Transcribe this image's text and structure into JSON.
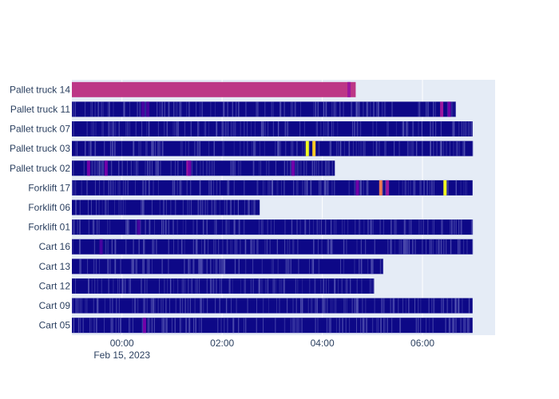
{
  "chart_data": {
    "type": "timeline",
    "x_axis": {
      "range": [
        "2023-02-14 23:00",
        "2023-02-15 07:27"
      ],
      "ticks": [
        {
          "time": "2023-02-15 00:00",
          "label": "00:00"
        },
        {
          "time": "2023-02-15 02:00",
          "label": "02:00"
        },
        {
          "time": "2023-02-15 04:00",
          "label": "04:00"
        },
        {
          "time": "2023-02-15 06:00",
          "label": "06:00"
        }
      ],
      "date_label": "Feb 15, 2023"
    },
    "colors": {
      "plot_bg": "#e5ecf6",
      "gridline": "#ffffff",
      "base": "#0d0887",
      "palette": [
        "#0d0887",
        "#46039f",
        "#7201a8",
        "#9c179e",
        "#bd3786",
        "#d8576b",
        "#ed7953",
        "#fb9f3a",
        "#fdca26",
        "#f0f921"
      ]
    },
    "categories": [
      {
        "name": "Pallet truck 14",
        "start": "2023-02-14 23:00",
        "end": "2023-02-15 04:40",
        "base": "#bd3786",
        "segments": [
          {
            "time": "2023-02-15 04:32",
            "color": "#9c179e"
          }
        ]
      },
      {
        "name": "Pallet truck 11",
        "start": "2023-02-14 23:00",
        "end": "2023-02-15 06:40",
        "base": "#0d0887",
        "segments": [
          {
            "time": "2023-02-15 00:25",
            "color": "#46039f"
          },
          {
            "time": "2023-02-15 00:31",
            "color": "#46039f"
          },
          {
            "time": "2023-02-15 06:23",
            "color": "#9c179e"
          },
          {
            "time": "2023-02-15 06:32",
            "color": "#7201a8"
          }
        ]
      },
      {
        "name": "Pallet truck 07",
        "start": "2023-02-14 23:00",
        "end": "2023-02-15 07:00",
        "base": "#0d0887",
        "segments": []
      },
      {
        "name": "Pallet truck 03",
        "start": "2023-02-14 23:00",
        "end": "2023-02-15 07:00",
        "base": "#0d0887",
        "segments": [
          {
            "time": "2023-02-15 03:42",
            "color": "#f0f921"
          },
          {
            "time": "2023-02-15 03:50",
            "color": "#fdca26"
          }
        ]
      },
      {
        "name": "Pallet truck 02",
        "start": "2023-02-14 23:00",
        "end": "2023-02-15 04:15",
        "base": "#0d0887",
        "segments": [
          {
            "time": "2023-02-14 23:20",
            "color": "#7201a8"
          },
          {
            "time": "2023-02-14 23:41",
            "color": "#7201a8"
          },
          {
            "time": "2023-02-15 01:19",
            "color": "#9c179e"
          },
          {
            "time": "2023-02-15 01:21",
            "color": "#7201a8"
          },
          {
            "time": "2023-02-15 03:25",
            "color": "#7201a8"
          }
        ]
      },
      {
        "name": "Forklift 17",
        "start": "2023-02-14 23:00",
        "end": "2023-02-15 07:00",
        "base": "#0d0887",
        "segments": [
          {
            "time": "2023-02-15 04:42",
            "color": "#7201a8"
          },
          {
            "time": "2023-02-15 05:10",
            "color": "#ed7953"
          },
          {
            "time": "2023-02-15 05:18",
            "color": "#9c179e"
          },
          {
            "time": "2023-02-15 06:27",
            "color": "#f0f921"
          }
        ]
      },
      {
        "name": "Forklift 06",
        "start": "2023-02-14 23:00",
        "end": "2023-02-15 02:45",
        "base": "#0d0887",
        "segments": []
      },
      {
        "name": "Forklift 01",
        "start": "2023-02-14 23:00",
        "end": "2023-02-15 07:00",
        "base": "#0d0887",
        "segments": [
          {
            "time": "2023-02-15 00:20",
            "color": "#46039f"
          }
        ]
      },
      {
        "name": "Cart 16",
        "start": "2023-02-14 23:00",
        "end": "2023-02-15 07:00",
        "base": "#0d0887",
        "segments": [
          {
            "time": "2023-02-14 23:35",
            "color": "#46039f"
          }
        ]
      },
      {
        "name": "Cart 13",
        "start": "2023-02-14 23:00",
        "end": "2023-02-15 05:13",
        "base": "#0d0887",
        "segments": []
      },
      {
        "name": "Cart 12",
        "start": "2023-02-14 23:00",
        "end": "2023-02-15 05:02",
        "base": "#0d0887",
        "segments": []
      },
      {
        "name": "Cart 09",
        "start": "2023-02-14 23:00",
        "end": "2023-02-15 07:00",
        "base": "#0d0887",
        "segments": []
      },
      {
        "name": "Cart 05",
        "start": "2023-02-14 23:00",
        "end": "2023-02-15 07:00",
        "base": "#0d0887",
        "segments": [
          {
            "time": "2023-02-15 00:27",
            "color": "#7201a8"
          }
        ]
      }
    ]
  }
}
